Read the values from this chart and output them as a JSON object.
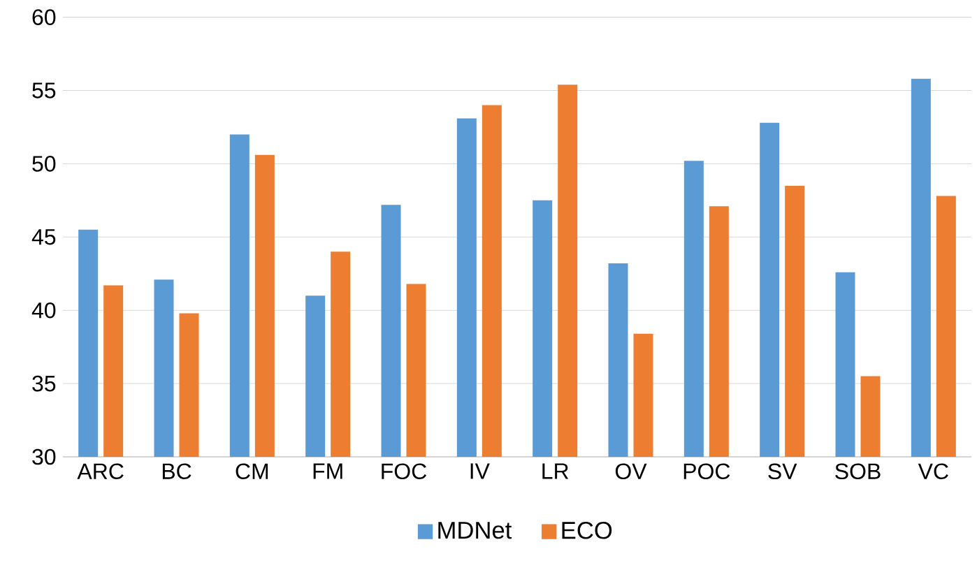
{
  "chart_data": {
    "type": "bar",
    "categories": [
      "ARC",
      "BC",
      "CM",
      "FM",
      "FOC",
      "IV",
      "LR",
      "OV",
      "POC",
      "SV",
      "SOB",
      "VC"
    ],
    "series": [
      {
        "name": "MDNet",
        "color": "#5b9bd5",
        "values": [
          45.5,
          42.1,
          52.0,
          41.0,
          47.2,
          53.1,
          47.5,
          43.2,
          50.2,
          52.8,
          42.6,
          55.8
        ]
      },
      {
        "name": "ECO",
        "color": "#ed7d31",
        "values": [
          41.7,
          39.8,
          50.6,
          44.0,
          41.8,
          54.0,
          55.4,
          38.4,
          47.1,
          48.5,
          35.5,
          47.8
        ]
      }
    ],
    "ylim": [
      30,
      60
    ],
    "yticks": [
      30,
      35,
      40,
      45,
      50,
      55,
      60
    ],
    "grid": "y",
    "legend": "bottom"
  }
}
